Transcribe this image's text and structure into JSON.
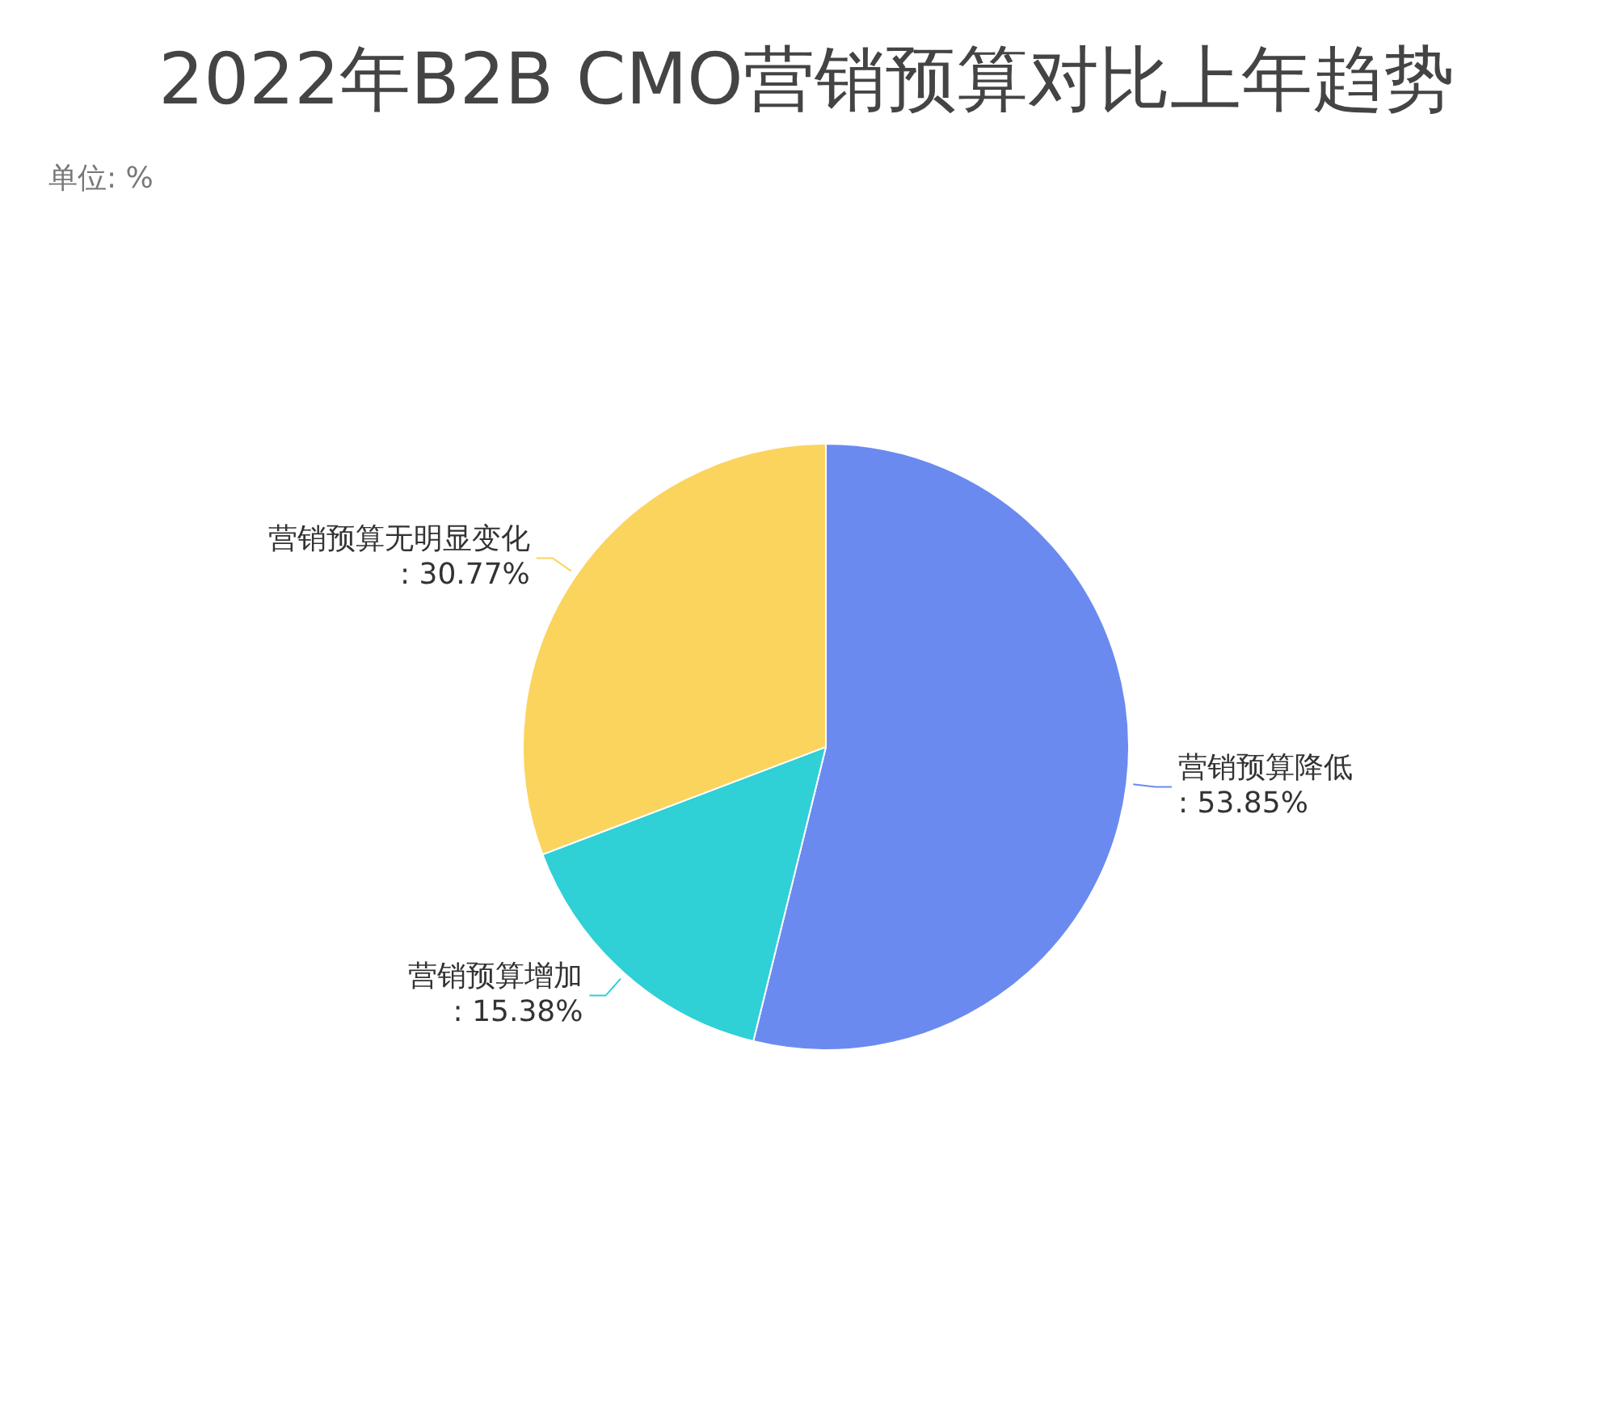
{
  "chart_data": {
    "type": "pie",
    "title": "2022年B2B CMO营销预算对比上年趋势",
    "subtitle": "单位: %",
    "categories": [
      "营销预算降低",
      "营销预算增加",
      "营销预算无明显变化"
    ],
    "values": [
      53.85,
      15.38,
      30.77
    ],
    "colors": [
      "#6b8af0",
      "#2fd0d6",
      "#fbd45e"
    ],
    "value_labels": [
      ": 53.85%",
      ": 15.38%",
      ": 30.77%"
    ],
    "legend": false
  }
}
